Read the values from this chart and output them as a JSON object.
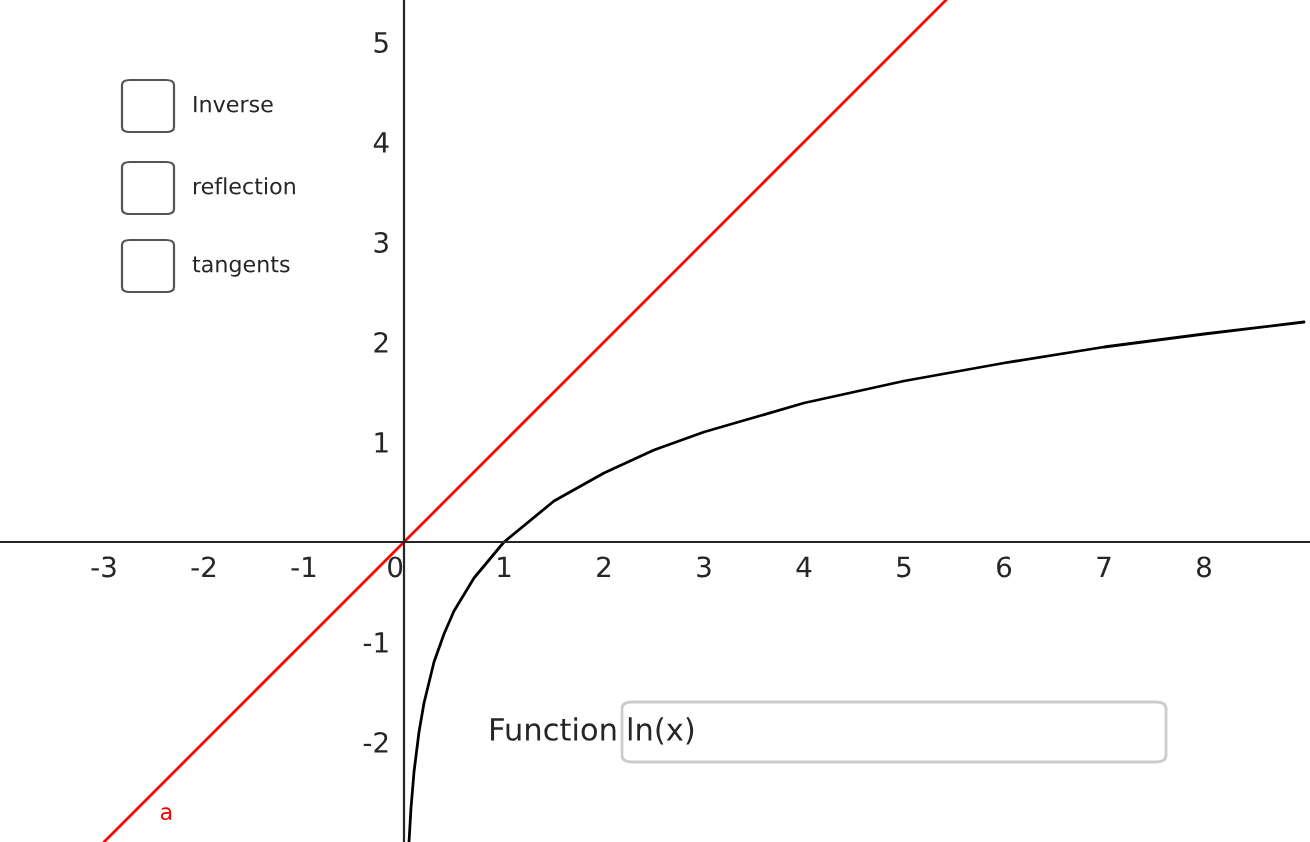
{
  "chart_data": {
    "type": "line",
    "xlim": [
      -4.04,
      9.06
    ],
    "ylim": [
      -3.0,
      5.42
    ],
    "xticks": [
      -3,
      -2,
      -1,
      0,
      1,
      2,
      3,
      4,
      5,
      6,
      7,
      8
    ],
    "yticks": [
      -2,
      -1,
      1,
      2,
      3,
      4,
      5
    ],
    "grid": false,
    "legend": false,
    "marker": "none",
    "line_style": "solid",
    "series": [
      {
        "name": "a",
        "color": "#ff0000",
        "x": [
          -3,
          5.42
        ],
        "values": [
          -3,
          5.42
        ]
      },
      {
        "color": "#000000",
        "x": [
          0.05,
          0.07,
          0.1,
          0.15,
          0.2,
          0.3,
          0.4,
          0.5,
          0.7,
          1,
          1.5,
          2,
          2.5,
          3,
          4,
          5,
          6,
          7,
          8,
          9
        ],
        "values": [
          -3.0,
          -2.66,
          -2.3,
          -1.9,
          -1.61,
          -1.2,
          -0.92,
          -0.69,
          -0.36,
          0,
          0.41,
          0.69,
          0.92,
          1.1,
          1.39,
          1.61,
          1.79,
          1.95,
          2.08,
          2.2
        ]
      }
    ],
    "annotations": [
      "Inverse",
      "reflection",
      "tangents",
      "Function",
      "ln(x)"
    ]
  }
}
